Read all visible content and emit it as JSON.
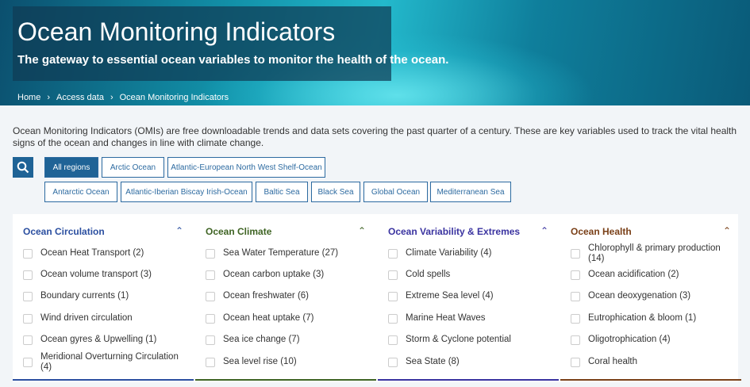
{
  "hero": {
    "title": "Ocean Monitoring Indicators",
    "subtitle": "The gateway to essential ocean variables to monitor the health of the ocean."
  },
  "breadcrumb": [
    "Home",
    "Access data",
    "Ocean Monitoring Indicators"
  ],
  "intro": "Ocean Monitoring Indicators (OMIs) are free downloadable trends and data sets covering the past quarter of a century. These are key variables used to track the vital health signs of the ocean and changes in line with climate change.",
  "search_icon": "search-icon",
  "regions": [
    "All regions",
    "Arctic Ocean",
    "Atlantic-European North West Shelf-Ocean",
    "Antarctic Ocean",
    "Atlantic-Iberian Biscay Irish-Ocean",
    "Baltic Sea",
    "Black Sea",
    "Global Ocean",
    "Mediterranean Sea"
  ],
  "selected_region": "All regions",
  "categories": [
    {
      "title": "Ocean Circulation",
      "color": "#2b4fa0",
      "items": [
        "Ocean Heat Transport (2)",
        "Ocean volume transport (3)",
        "Boundary currents (1)",
        "Wind driven circulation",
        "Ocean gyres & Upwelling (1)",
        "Meridional Overturning Circulation (4)"
      ]
    },
    {
      "title": "Ocean Climate",
      "color": "#3f6424",
      "items": [
        "Sea Water Temperature (27)",
        "Ocean carbon uptake (3)",
        "Ocean freshwater (6)",
        "Ocean heat uptake (7)",
        "Sea ice change (7)",
        "Sea level rise (10)"
      ]
    },
    {
      "title": "Ocean Variability & Extremes",
      "color": "#3a33a0",
      "items": [
        "Climate Variability (4)",
        "Cold spells",
        "Extreme Sea level (4)",
        "Marine Heat Waves",
        "Storm & Cyclone potential",
        "Sea State (8)"
      ]
    },
    {
      "title": "Ocean Health",
      "color": "#7a4018",
      "items": [
        "Chlorophyll & primary production (14)",
        "Ocean acidification (2)",
        "Ocean deoxygenation (3)",
        "Eutrophication & bloom (1)",
        "Oligotrophication (4)",
        "Coral health"
      ]
    }
  ]
}
